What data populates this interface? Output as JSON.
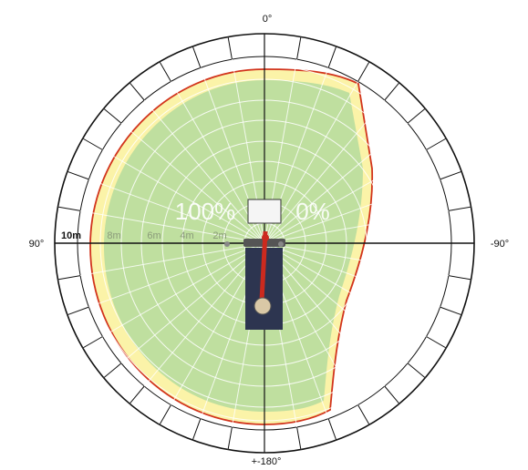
{
  "angle_labels": {
    "top": "0°",
    "left": "90°",
    "right": "-90°",
    "bottom": "+-180°"
  },
  "radius_labels": [
    "2m",
    "4m",
    "6m",
    "8m",
    "10m"
  ],
  "percent_labels": {
    "left": "100%",
    "right": "0%"
  },
  "colors": {
    "zone_100": "#bfdf9f",
    "zone_0": "#fbf3a8",
    "boundary": "#d2341c",
    "grid_outer": "#111111",
    "grid_inner": "#ffffff",
    "boom": "#cc2a1e"
  }
}
